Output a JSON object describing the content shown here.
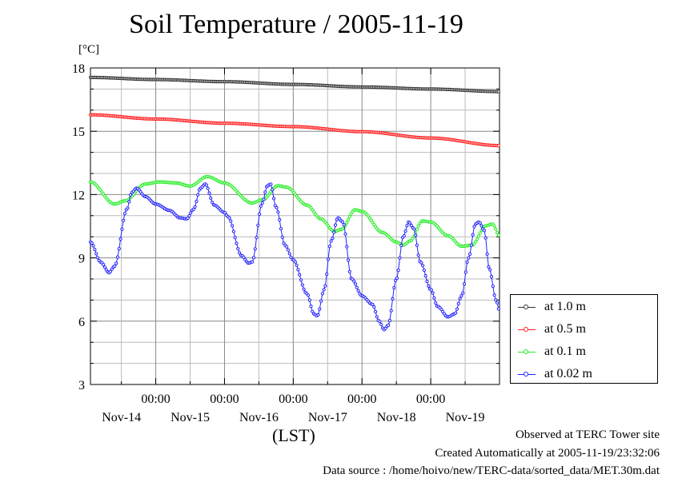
{
  "header": {
    "title": "Soil Temperature / 2005-11-19",
    "unit": "[°C]"
  },
  "footer": {
    "observed": "Observed at TERC Tower site",
    "created": "Created Automatically at 2005-11-19/23:32:06",
    "source": "Data source : /home/hoivo/new/TERC-data/sorted_data/MET.30m.dat"
  },
  "chart_data": {
    "type": "line",
    "xlabel": "(LST)",
    "ylabel": "[°C]",
    "ylim": [
      3,
      18
    ],
    "xlim_days_since_nov13_00": [
      0.05,
      6.0
    ],
    "yticks": [
      "3",
      "6",
      "9",
      "12",
      "15",
      "18"
    ],
    "time_ticks": [
      "00:00",
      "00:00",
      "00:00",
      "00:00",
      "00:00"
    ],
    "date_ticks": [
      "Nov-14",
      "Nov-15",
      "Nov-16",
      "Nov-17",
      "Nov-18",
      "Nov-19"
    ],
    "grid": true,
    "legend_position": "right",
    "series": [
      {
        "name": "at 1.0 m",
        "color": "#333333",
        "points": [
          [
            0.05,
            17.55
          ],
          [
            1.0,
            17.45
          ],
          [
            2.0,
            17.35
          ],
          [
            3.0,
            17.22
          ],
          [
            4.0,
            17.1
          ],
          [
            5.0,
            17.0
          ],
          [
            6.0,
            16.88
          ]
        ]
      },
      {
        "name": "at 0.5 m",
        "color": "#ff2020",
        "points": [
          [
            0.05,
            15.78
          ],
          [
            1.0,
            15.58
          ],
          [
            2.0,
            15.38
          ],
          [
            3.0,
            15.22
          ],
          [
            4.0,
            14.98
          ],
          [
            5.0,
            14.68
          ],
          [
            6.0,
            14.32
          ]
        ]
      },
      {
        "name": "at 0.1 m",
        "color": "#22ee22",
        "points": [
          [
            0.05,
            12.6
          ],
          [
            0.4,
            11.55
          ],
          [
            0.55,
            11.7
          ],
          [
            0.85,
            12.5
          ],
          [
            1.05,
            12.6
          ],
          [
            1.3,
            12.55
          ],
          [
            1.5,
            12.4
          ],
          [
            1.75,
            12.85
          ],
          [
            2.0,
            12.55
          ],
          [
            2.4,
            11.6
          ],
          [
            2.55,
            11.75
          ],
          [
            2.78,
            12.42
          ],
          [
            2.9,
            12.35
          ],
          [
            3.2,
            11.5
          ],
          [
            3.4,
            10.85
          ],
          [
            3.6,
            10.25
          ],
          [
            3.7,
            10.35
          ],
          [
            3.9,
            11.28
          ],
          [
            4.0,
            11.2
          ],
          [
            4.3,
            10.2
          ],
          [
            4.5,
            9.75
          ],
          [
            4.6,
            9.6
          ],
          [
            4.7,
            9.8
          ],
          [
            4.88,
            10.75
          ],
          [
            5.0,
            10.7
          ],
          [
            5.25,
            10.05
          ],
          [
            5.45,
            9.55
          ],
          [
            5.6,
            9.6
          ],
          [
            5.8,
            10.52
          ],
          [
            5.9,
            10.6
          ],
          [
            6.0,
            10.05
          ]
        ]
      },
      {
        "name": "at 0.02 m",
        "color": "#2222ff",
        "points": [
          [
            0.05,
            9.75
          ],
          [
            0.2,
            8.8
          ],
          [
            0.32,
            8.3
          ],
          [
            0.4,
            8.6
          ],
          [
            0.58,
            11.3
          ],
          [
            0.65,
            12.1
          ],
          [
            0.72,
            12.3
          ],
          [
            0.85,
            11.9
          ],
          [
            1.0,
            11.55
          ],
          [
            1.2,
            11.25
          ],
          [
            1.35,
            10.9
          ],
          [
            1.45,
            10.85
          ],
          [
            1.55,
            11.3
          ],
          [
            1.65,
            12.3
          ],
          [
            1.72,
            12.5
          ],
          [
            1.85,
            11.5
          ],
          [
            2.0,
            11.15
          ],
          [
            2.05,
            10.95
          ],
          [
            2.25,
            9.1
          ],
          [
            2.35,
            8.75
          ],
          [
            2.4,
            8.8
          ],
          [
            2.55,
            11.6
          ],
          [
            2.62,
            12.4
          ],
          [
            2.67,
            12.5
          ],
          [
            2.75,
            11.4
          ],
          [
            2.88,
            9.6
          ],
          [
            3.0,
            8.9
          ],
          [
            3.2,
            7.3
          ],
          [
            3.3,
            6.35
          ],
          [
            3.35,
            6.25
          ],
          [
            3.45,
            7.5
          ],
          [
            3.55,
            9.8
          ],
          [
            3.65,
            10.9
          ],
          [
            3.72,
            10.7
          ],
          [
            3.85,
            8.0
          ],
          [
            4.0,
            7.2
          ],
          [
            4.15,
            6.8
          ],
          [
            4.25,
            6.0
          ],
          [
            4.32,
            5.6
          ],
          [
            4.38,
            5.8
          ],
          [
            4.5,
            8.0
          ],
          [
            4.6,
            10.0
          ],
          [
            4.68,
            10.7
          ],
          [
            4.75,
            10.4
          ],
          [
            4.85,
            8.8
          ],
          [
            5.0,
            7.5
          ],
          [
            5.1,
            6.7
          ],
          [
            5.25,
            6.2
          ],
          [
            5.35,
            6.35
          ],
          [
            5.45,
            7.2
          ],
          [
            5.55,
            9.0
          ],
          [
            5.65,
            10.6
          ],
          [
            5.7,
            10.7
          ],
          [
            5.78,
            10.3
          ],
          [
            5.85,
            8.5
          ],
          [
            5.95,
            7.0
          ],
          [
            6.0,
            6.5
          ]
        ]
      }
    ]
  }
}
